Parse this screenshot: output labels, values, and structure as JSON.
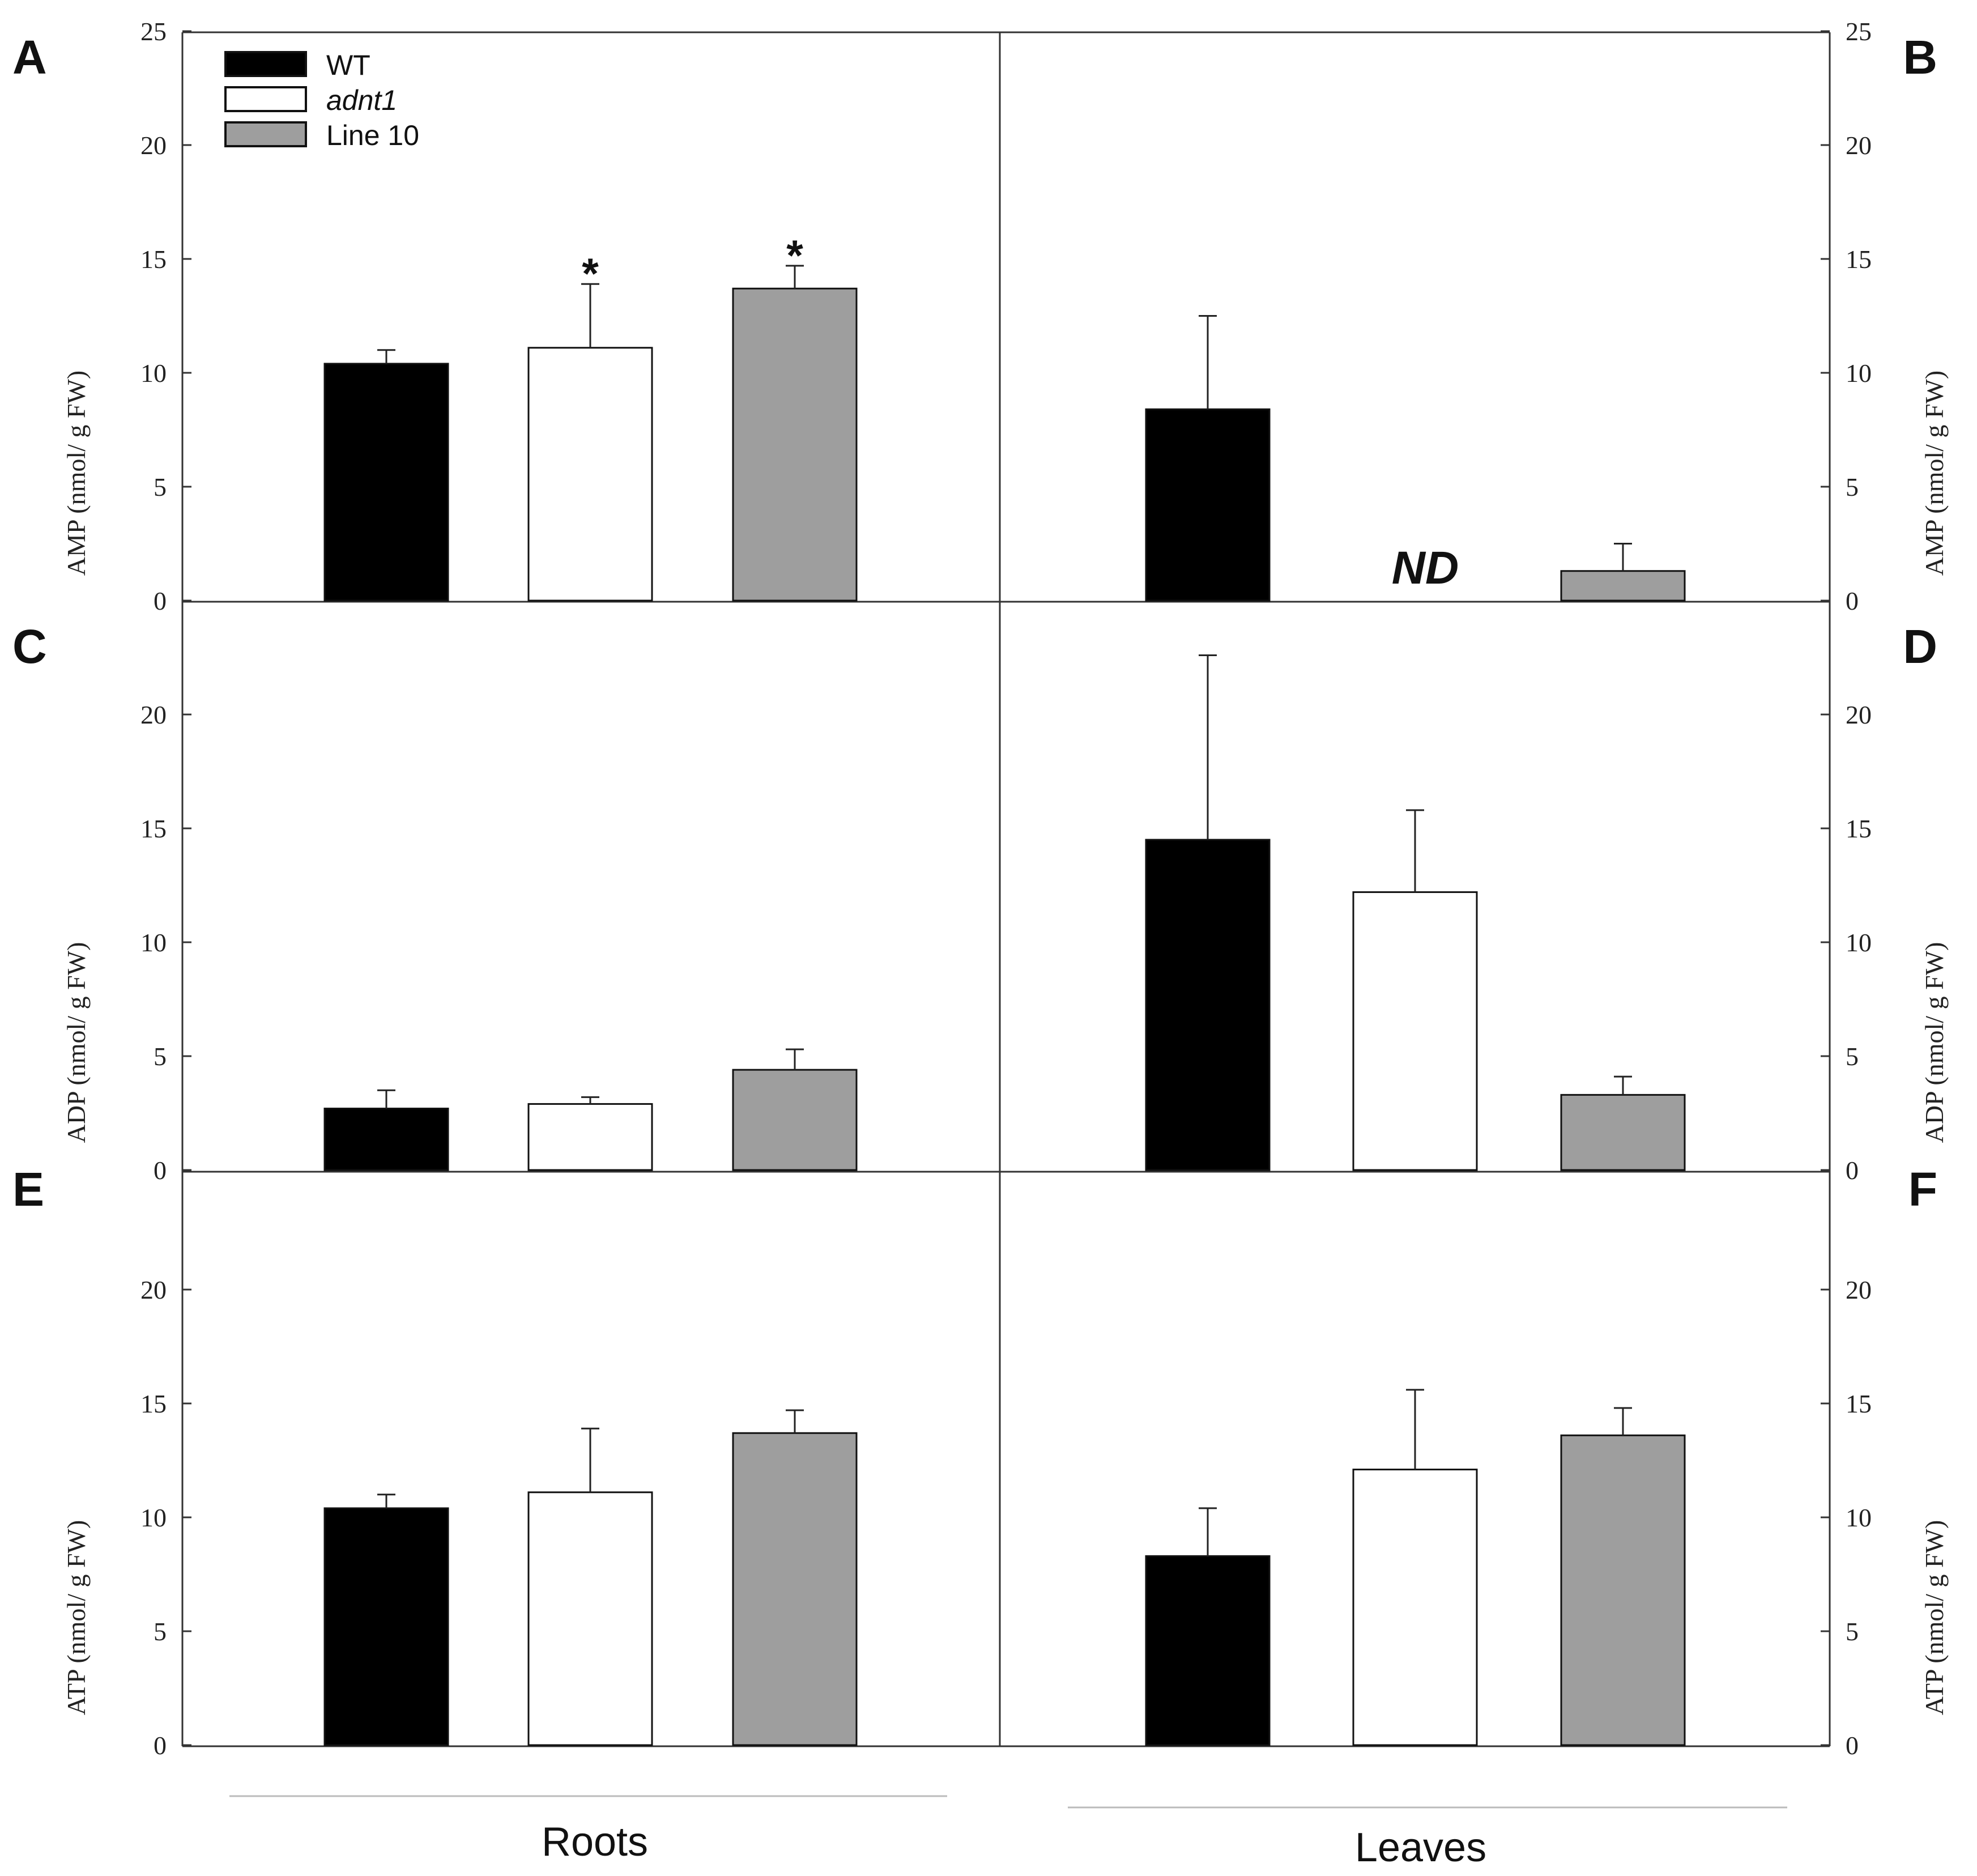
{
  "chart_data": {
    "type": "bar",
    "layout": "3x2 grid",
    "categories": [
      "WT",
      "adnt1",
      "Line 10"
    ],
    "series_colors": {
      "WT": "#000000",
      "adnt1": "#ffffff",
      "Line 10": "#9e9e9e"
    },
    "legend": [
      {
        "label": "WT",
        "color": "#000000",
        "italic": false
      },
      {
        "label": "adnt1",
        "color": "#ffffff",
        "italic": true
      },
      {
        "label": "Line 10",
        "color": "#9e9e9e",
        "italic": false
      }
    ],
    "legend_location": "top-left of panel A",
    "group_labels": {
      "left": "Roots",
      "right": "Leaves"
    },
    "panels": [
      {
        "id": "A",
        "letter": "A",
        "column": "left",
        "row": 0,
        "ylabel": "AMP (nmol/ g FW)",
        "ylim": [
          0,
          25
        ],
        "yticks": [
          0,
          5,
          10,
          15,
          20,
          25
        ],
        "values": [
          10.4,
          11.1,
          13.7
        ],
        "errors": [
          0.6,
          2.8,
          1.0
        ],
        "significance": [
          "",
          "*",
          "*"
        ],
        "missing": []
      },
      {
        "id": "B",
        "letter": "B",
        "column": "right",
        "row": 0,
        "ylabel": "AMP (nmol/ g FW)",
        "ylim": [
          0,
          25
        ],
        "yticks": [
          0,
          5,
          10,
          15,
          20,
          25
        ],
        "values": [
          8.4,
          0,
          1.3
        ],
        "errors": [
          4.1,
          0,
          1.2
        ],
        "significance": [
          "",
          "",
          ""
        ],
        "missing": [
          1
        ],
        "missing_label": "ND"
      },
      {
        "id": "C",
        "letter": "C",
        "column": "left",
        "row": 1,
        "ylabel": "ADP (nmol/ g FW)",
        "ylim": [
          0,
          25
        ],
        "yticks": [
          0,
          5,
          10,
          15,
          20
        ],
        "values": [
          2.7,
          2.9,
          4.4
        ],
        "errors": [
          0.8,
          0.3,
          0.9
        ],
        "significance": [
          "",
          "",
          ""
        ],
        "missing": []
      },
      {
        "id": "D",
        "letter": "D",
        "column": "right",
        "row": 1,
        "ylabel": "ADP (nmol/ g FW)",
        "ylim": [
          0,
          25
        ],
        "yticks": [
          0,
          5,
          10,
          15,
          20
        ],
        "values": [
          14.5,
          12.2,
          3.3
        ],
        "errors": [
          8.1,
          3.6,
          0.8
        ],
        "significance": [
          "",
          "",
          ""
        ],
        "missing": []
      },
      {
        "id": "E",
        "letter": "E",
        "column": "left",
        "row": 2,
        "ylabel": "ATP (nmol/ g FW)",
        "ylim": [
          0,
          25
        ],
        "yticks": [
          0,
          5,
          10,
          15,
          20
        ],
        "values": [
          10.4,
          11.1,
          13.7
        ],
        "errors": [
          0.6,
          2.8,
          1.0
        ],
        "significance": [
          "",
          "",
          ""
        ],
        "missing": []
      },
      {
        "id": "F",
        "letter": "F",
        "column": "right",
        "row": 2,
        "ylabel": "ATP (nmol/ g FW)",
        "ylim": [
          0,
          25
        ],
        "yticks": [
          0,
          5,
          10,
          15,
          20
        ],
        "values": [
          8.3,
          12.1,
          13.6
        ],
        "errors": [
          2.1,
          3.5,
          1.2
        ],
        "significance": [
          "",
          "",
          ""
        ],
        "missing": []
      }
    ]
  }
}
